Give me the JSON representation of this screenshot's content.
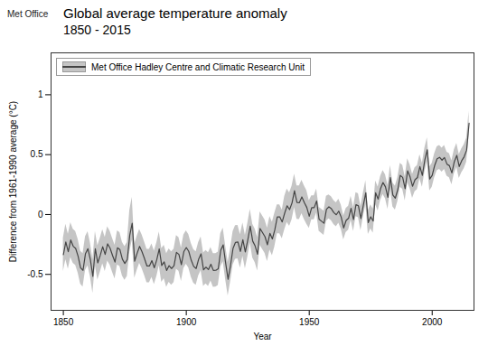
{
  "chart_data": {
    "type": "line",
    "title": "Global average temperature anomaly",
    "subtitle": "1850 - 2015",
    "annotations": [
      "Met Office"
    ],
    "xlabel": "Year",
    "ylabel": "Difference from 1961-1990 average (°C)",
    "xlim": [
      1845,
      2017
    ],
    "ylim": [
      -0.8,
      1.35
    ],
    "xticks": [
      1850,
      1900,
      1950,
      2000
    ],
    "yticks": [
      -0.5,
      0,
      0.5,
      1
    ],
    "legend": "upper left",
    "x": [
      1850,
      1851,
      1852,
      1853,
      1854,
      1855,
      1856,
      1857,
      1858,
      1859,
      1860,
      1861,
      1862,
      1863,
      1864,
      1865,
      1866,
      1867,
      1868,
      1869,
      1870,
      1871,
      1872,
      1873,
      1874,
      1875,
      1876,
      1877,
      1878,
      1879,
      1880,
      1881,
      1882,
      1883,
      1884,
      1885,
      1886,
      1887,
      1888,
      1889,
      1890,
      1891,
      1892,
      1893,
      1894,
      1895,
      1896,
      1897,
      1898,
      1899,
      1900,
      1901,
      1902,
      1903,
      1904,
      1905,
      1906,
      1907,
      1908,
      1909,
      1910,
      1911,
      1912,
      1913,
      1914,
      1915,
      1916,
      1917,
      1918,
      1919,
      1920,
      1921,
      1922,
      1923,
      1924,
      1925,
      1926,
      1927,
      1928,
      1929,
      1930,
      1931,
      1932,
      1933,
      1934,
      1935,
      1936,
      1937,
      1938,
      1939,
      1940,
      1941,
      1942,
      1943,
      1944,
      1945,
      1946,
      1947,
      1948,
      1949,
      1950,
      1951,
      1952,
      1953,
      1954,
      1955,
      1956,
      1957,
      1958,
      1959,
      1960,
      1961,
      1962,
      1963,
      1964,
      1965,
      1966,
      1967,
      1968,
      1969,
      1970,
      1971,
      1972,
      1973,
      1974,
      1975,
      1976,
      1977,
      1978,
      1979,
      1980,
      1981,
      1982,
      1983,
      1984,
      1985,
      1986,
      1987,
      1988,
      1989,
      1990,
      1991,
      1992,
      1993,
      1994,
      1995,
      1996,
      1997,
      1998,
      1999,
      2000,
      2001,
      2002,
      2003,
      2004,
      2005,
      2006,
      2007,
      2008,
      2009,
      2010,
      2011,
      2012,
      2013,
      2014,
      2015
    ],
    "series": [
      {
        "name": "Met Office Hadley Centre and Climatic Research Unit",
        "color": "#444444",
        "values": [
          -0.336,
          -0.23,
          -0.311,
          -0.213,
          -0.265,
          -0.283,
          -0.348,
          -0.444,
          -0.466,
          -0.326,
          -0.286,
          -0.378,
          -0.517,
          -0.285,
          -0.404,
          -0.341,
          -0.269,
          -0.333,
          -0.245,
          -0.281,
          -0.342,
          -0.397,
          -0.278,
          -0.293,
          -0.373,
          -0.409,
          -0.376,
          -0.173,
          -0.072,
          -0.39,
          -0.324,
          -0.266,
          -0.311,
          -0.368,
          -0.43,
          -0.43,
          -0.385,
          -0.445,
          -0.377,
          -0.287,
          -0.426,
          -0.396,
          -0.467,
          -0.427,
          -0.451,
          -0.428,
          -0.316,
          -0.333,
          -0.419,
          -0.31,
          -0.276,
          -0.308,
          -0.382,
          -0.433,
          -0.451,
          -0.374,
          -0.328,
          -0.461,
          -0.44,
          -0.46,
          -0.415,
          -0.467,
          -0.466,
          -0.453,
          -0.298,
          -0.254,
          -0.405,
          -0.54,
          -0.423,
          -0.283,
          -0.233,
          -0.23,
          -0.308,
          -0.21,
          -0.313,
          -0.214,
          -0.097,
          -0.222,
          -0.263,
          -0.332,
          -0.117,
          -0.151,
          -0.185,
          -0.253,
          -0.157,
          -0.204,
          -0.128,
          -0.02,
          -0.02,
          -0.062,
          0.011,
          0.073,
          0.041,
          0.097,
          0.198,
          0.1,
          0.099,
          0.147,
          0.099,
          0.059,
          -0.015,
          0.057,
          0.057,
          0.113,
          -0.04,
          -0.056,
          -0.073,
          0.044,
          0.064,
          0.048,
          0.016,
          -0.002,
          0.028,
          -0.022,
          -0.112,
          -0.049,
          -0.031,
          0.052,
          -0.042,
          0.082,
          0.073,
          -0.034,
          0.078,
          0.182,
          -0.067,
          -0.019,
          -0.055,
          0.181,
          0.129,
          0.216,
          0.267,
          0.231,
          0.143,
          0.309,
          0.163,
          0.137,
          0.207,
          0.327,
          0.31,
          0.215,
          0.365,
          0.314,
          0.236,
          0.29,
          0.309,
          0.4,
          0.327,
          0.455,
          0.541,
          0.297,
          0.327,
          0.409,
          0.465,
          0.477,
          0.454,
          0.476,
          0.421,
          0.408,
          0.348,
          0.441,
          0.494,
          0.401,
          0.449,
          0.482,
          0.538,
          0.762
        ],
        "band": {
          "color": "#bbbbbb",
          "lower": [
            -0.476,
            -0.378,
            -0.457,
            -0.358,
            -0.407,
            -0.424,
            -0.488,
            -0.582,
            -0.606,
            -0.466,
            -0.428,
            -0.52,
            -0.659,
            -0.428,
            -0.547,
            -0.483,
            -0.411,
            -0.475,
            -0.388,
            -0.423,
            -0.484,
            -0.538,
            -0.42,
            -0.435,
            -0.514,
            -0.55,
            -0.517,
            -0.315,
            -0.215,
            -0.532,
            -0.466,
            -0.407,
            -0.452,
            -0.508,
            -0.57,
            -0.57,
            -0.525,
            -0.585,
            -0.518,
            -0.428,
            -0.566,
            -0.536,
            -0.607,
            -0.567,
            -0.591,
            -0.568,
            -0.456,
            -0.473,
            -0.559,
            -0.45,
            -0.416,
            -0.448,
            -0.522,
            -0.573,
            -0.591,
            -0.514,
            -0.468,
            -0.601,
            -0.58,
            -0.6,
            -0.555,
            -0.607,
            -0.606,
            -0.593,
            -0.438,
            -0.394,
            -0.545,
            -0.68,
            -0.563,
            -0.423,
            -0.373,
            -0.37,
            -0.448,
            -0.35,
            -0.453,
            -0.354,
            -0.237,
            -0.362,
            -0.403,
            -0.472,
            -0.257,
            -0.291,
            -0.325,
            -0.393,
            -0.297,
            -0.344,
            -0.268,
            -0.16,
            -0.16,
            -0.202,
            -0.129,
            -0.067,
            -0.099,
            -0.043,
            0.058,
            -0.04,
            -0.041,
            0.007,
            -0.041,
            -0.081,
            -0.115,
            -0.043,
            -0.043,
            0.013,
            -0.14,
            -0.156,
            -0.173,
            -0.056,
            -0.036,
            -0.052,
            -0.084,
            -0.102,
            -0.072,
            -0.122,
            -0.212,
            -0.149,
            -0.131,
            -0.048,
            -0.142,
            -0.018,
            -0.027,
            -0.134,
            -0.022,
            0.082,
            -0.167,
            -0.119,
            -0.155,
            0.081,
            0.029,
            0.116,
            0.167,
            0.131,
            0.043,
            0.209,
            0.063,
            0.037,
            0.107,
            0.227,
            0.21,
            0.115,
            0.265,
            0.214,
            0.136,
            0.19,
            0.209,
            0.3,
            0.227,
            0.355,
            0.441,
            0.197,
            0.227,
            0.309,
            0.365,
            0.377,
            0.354,
            0.376,
            0.321,
            0.308,
            0.248,
            0.341,
            0.394,
            0.301,
            0.349,
            0.382,
            0.438,
            0.662
          ],
          "upper": [
            -0.196,
            -0.082,
            -0.165,
            -0.068,
            -0.123,
            -0.142,
            -0.208,
            -0.306,
            -0.326,
            -0.186,
            -0.144,
            -0.238,
            -0.375,
            -0.142,
            -0.261,
            -0.199,
            -0.127,
            -0.191,
            -0.102,
            -0.139,
            -0.2,
            -0.256,
            -0.136,
            -0.151,
            -0.232,
            -0.268,
            -0.235,
            0.033,
            0.143,
            -0.248,
            -0.182,
            -0.125,
            -0.17,
            -0.228,
            -0.29,
            -0.29,
            -0.245,
            -0.305,
            -0.236,
            -0.146,
            -0.286,
            -0.256,
            -0.327,
            -0.287,
            -0.311,
            -0.288,
            -0.176,
            -0.193,
            -0.279,
            -0.17,
            -0.136,
            -0.168,
            -0.242,
            -0.293,
            -0.311,
            -0.234,
            -0.188,
            -0.321,
            -0.3,
            -0.32,
            -0.275,
            -0.327,
            -0.326,
            -0.313,
            -0.158,
            -0.114,
            -0.265,
            -0.4,
            -0.283,
            -0.143,
            -0.093,
            -0.09,
            -0.168,
            -0.07,
            -0.173,
            -0.074,
            0.043,
            -0.082,
            -0.123,
            -0.192,
            0.023,
            -0.011,
            -0.045,
            -0.113,
            -0.017,
            -0.064,
            0.012,
            0.08,
            0.08,
            0.038,
            0.151,
            0.213,
            0.181,
            0.237,
            0.338,
            0.24,
            0.239,
            0.287,
            0.239,
            0.199,
            0.115,
            0.157,
            0.157,
            0.213,
            0.06,
            0.044,
            0.027,
            0.152,
            0.164,
            0.148,
            0.116,
            0.098,
            0.128,
            0.078,
            -0.012,
            0.051,
            0.069,
            0.152,
            0.058,
            0.182,
            0.173,
            0.066,
            0.178,
            0.282,
            0.033,
            0.081,
            0.045,
            0.281,
            0.229,
            0.316,
            0.367,
            0.331,
            0.243,
            0.409,
            0.263,
            0.237,
            0.307,
            0.427,
            0.41,
            0.315,
            0.465,
            0.414,
            0.336,
            0.39,
            0.409,
            0.5,
            0.427,
            0.555,
            0.641,
            0.397,
            0.427,
            0.509,
            0.565,
            0.577,
            0.554,
            0.576,
            0.521,
            0.508,
            0.448,
            0.541,
            0.594,
            0.501,
            0.549,
            0.582,
            0.638,
            0.862
          ]
        }
      }
    ]
  }
}
